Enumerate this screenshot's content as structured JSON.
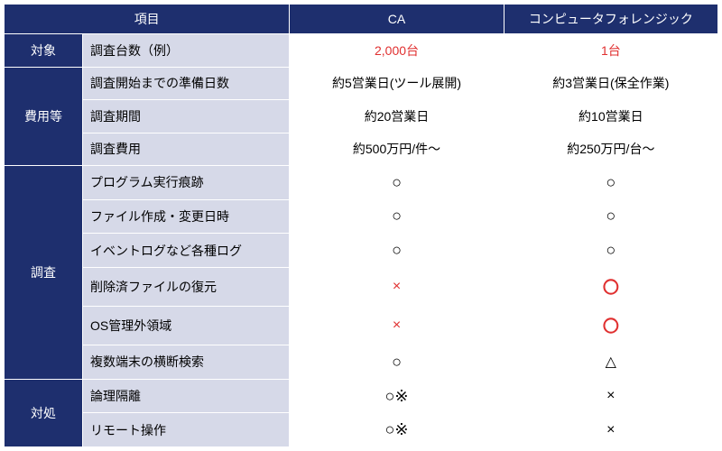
{
  "colors": {
    "header_bg": "#1e2f6e",
    "header_fg": "#ffffff",
    "sub_bg": "#d6d9e8",
    "sub_fg": "#000000",
    "val_bg": "#ffffff",
    "val_fg": "#000000",
    "accent_red": "#e03030",
    "border": "#ffffff"
  },
  "header": {
    "col1": "項目",
    "col2": "CA",
    "col3": "コンピュータフォレンジック"
  },
  "sections": [
    {
      "category": "対象",
      "rows": [
        {
          "label": "調査台数（例）",
          "ca": {
            "text": "2,000台",
            "red": true
          },
          "cf": {
            "text": "1台",
            "red": true
          }
        }
      ]
    },
    {
      "category": "費用等",
      "rows": [
        {
          "label": "調査開始までの準備日数",
          "ca": {
            "text": "約5営業日(ツール展開)"
          },
          "cf": {
            "text": "約3営業日(保全作業)"
          }
        },
        {
          "label": "調査期間",
          "ca": {
            "text": "約20営業日"
          },
          "cf": {
            "text": "約10営業日"
          }
        },
        {
          "label": "調査費用",
          "ca": {
            "text": "約500万円/件～"
          },
          "cf": {
            "text": "約250万円/台～"
          }
        }
      ]
    },
    {
      "category": "調査",
      "rows": [
        {
          "label": "プログラム実行痕跡",
          "ca": {
            "symbol": "circle"
          },
          "cf": {
            "symbol": "circle"
          }
        },
        {
          "label": "ファイル作成・変更日時",
          "ca": {
            "symbol": "circle"
          },
          "cf": {
            "symbol": "circle"
          }
        },
        {
          "label": "イベントログなど各種ログ",
          "ca": {
            "symbol": "circle"
          },
          "cf": {
            "symbol": "circle"
          }
        },
        {
          "label": "削除済ファイルの復元",
          "ca": {
            "symbol": "cross-red"
          },
          "cf": {
            "symbol": "circle-red"
          }
        },
        {
          "label": "OS管理外領域",
          "ca": {
            "symbol": "cross-red"
          },
          "cf": {
            "symbol": "circle-red"
          }
        },
        {
          "label": "複数端末の横断検索",
          "ca": {
            "symbol": "circle"
          },
          "cf": {
            "symbol": "triangle"
          }
        }
      ]
    },
    {
      "category": "対処",
      "rows": [
        {
          "label": "論理隔離",
          "ca": {
            "symbol": "circle-note"
          },
          "cf": {
            "symbol": "cross"
          }
        },
        {
          "label": "リモート操作",
          "ca": {
            "symbol": "circle-note"
          },
          "cf": {
            "symbol": "cross"
          }
        }
      ]
    }
  ],
  "symbols": {
    "circle": "○",
    "circle-red": "〇",
    "circle-note": "○※",
    "cross": "×",
    "cross-red": "×",
    "triangle": "△"
  }
}
